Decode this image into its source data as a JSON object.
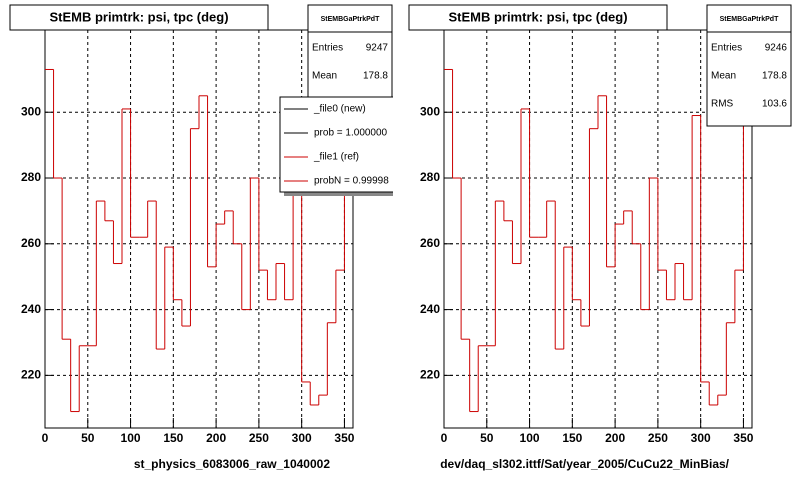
{
  "chart_data": [
    {
      "type": "histogram",
      "title": "StEMB primtrk: psi, tpc (deg)",
      "xlabel": "st_physics_6083006_raw_1040002",
      "bins": [
        0,
        10,
        20,
        30,
        40,
        50,
        60,
        70,
        80,
        90,
        100,
        110,
        120,
        130,
        140,
        150,
        160,
        170,
        180,
        190,
        200,
        210,
        220,
        230,
        240,
        250,
        260,
        270,
        280,
        290,
        300,
        310,
        320,
        330,
        340,
        350,
        360
      ],
      "values": [
        313,
        280,
        231,
        209,
        229,
        229,
        273,
        267,
        254,
        301,
        262,
        262,
        273,
        228,
        259,
        243,
        235,
        295,
        305,
        253,
        266,
        270,
        260,
        240,
        280,
        252,
        243,
        254,
        243,
        299,
        218,
        211,
        214,
        236,
        252,
        307
      ],
      "color": "#cc0000",
      "xlim": [
        0,
        360
      ],
      "ylim": [
        204,
        325
      ],
      "xticks": [
        0,
        50,
        100,
        150,
        200,
        250,
        300,
        350
      ],
      "yticks": [
        220,
        240,
        260,
        280,
        300
      ],
      "grid": true,
      "stats": {
        "title": "StEMBGaPtrkPdT",
        "rows": [
          {
            "label": "Entries",
            "value": 9247
          },
          {
            "label": "Mean",
            "value": 178.8
          }
        ]
      },
      "legend": [
        {
          "label": "_file0 (new)",
          "color": "#000000"
        },
        {
          "label": "prob = 1.000000",
          "color": "#000000"
        },
        {
          "label": "_file1 (ref)",
          "color": "#cc0000"
        },
        {
          "label": "probN = 0.99998",
          "color": "#cc0000"
        }
      ]
    },
    {
      "type": "histogram",
      "title": "StEMB primtrk: psi, tpc (deg)",
      "xlabel": "dev/daq_sl302.ittf/Sat/year_2005/CuCu22_MinBias/",
      "bins": [
        0,
        10,
        20,
        30,
        40,
        50,
        60,
        70,
        80,
        90,
        100,
        110,
        120,
        130,
        140,
        150,
        160,
        170,
        180,
        190,
        200,
        210,
        220,
        230,
        240,
        250,
        260,
        270,
        280,
        290,
        300,
        310,
        320,
        330,
        340,
        350,
        360
      ],
      "values": [
        313,
        280,
        231,
        209,
        229,
        229,
        273,
        267,
        254,
        301,
        262,
        262,
        273,
        228,
        259,
        243,
        235,
        295,
        305,
        253,
        266,
        270,
        260,
        240,
        280,
        252,
        243,
        254,
        243,
        299,
        218,
        211,
        214,
        236,
        252,
        307
      ],
      "color": "#cc0000",
      "xlim": [
        0,
        360
      ],
      "ylim": [
        204,
        325
      ],
      "xticks": [
        0,
        50,
        100,
        150,
        200,
        250,
        300,
        350
      ],
      "yticks": [
        220,
        240,
        260,
        280,
        300
      ],
      "grid": true,
      "stats": {
        "title": "StEMBGaPtrkPdT",
        "rows": [
          {
            "label": "Entries",
            "value": 9246
          },
          {
            "label": "Mean",
            "value": 178.8
          },
          {
            "label": "RMS",
            "value": 103.6
          }
        ]
      }
    }
  ]
}
